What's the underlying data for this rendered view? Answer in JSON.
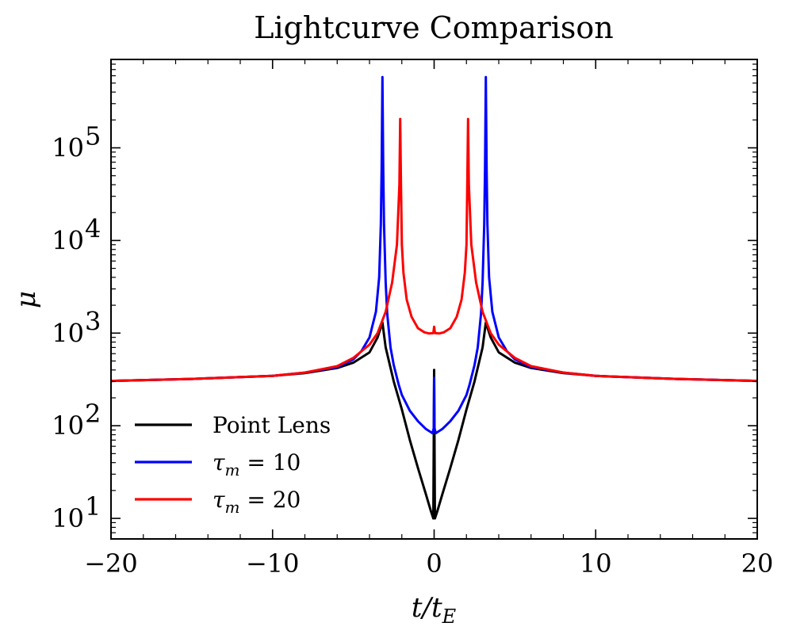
{
  "chart_data": {
    "type": "line",
    "title": "Lightcurve Comparison",
    "xlabel": "t/t_E",
    "ylabel": "μ",
    "yscale": "log",
    "xlim": [
      -20,
      20
    ],
    "ylim": [
      6,
      900000
    ],
    "grid": false,
    "legend_position": "lower-left",
    "x_ticks": [
      -20,
      -10,
      0,
      10,
      20
    ],
    "x_tick_labels": [
      "−20",
      "−10",
      "0",
      "10",
      "20"
    ],
    "y_ticks": [
      10,
      100,
      1000,
      10000,
      100000
    ],
    "y_tick_exponents": [
      "1",
      "2",
      "3",
      "4",
      "5"
    ],
    "series": [
      {
        "name": "Point Lens",
        "color": "#000000",
        "x": [
          -20,
          -15,
          -10,
          -8,
          -6,
          -5,
          -4,
          -3.5,
          -3.2,
          -3,
          -2.5,
          -2,
          -1.5,
          -1,
          -0.5,
          -0.2,
          -0.05,
          0,
          0.05,
          0.2,
          0.5,
          1,
          1.5,
          2,
          2.5,
          3,
          3.2,
          3.5,
          4,
          5,
          6,
          8,
          10,
          15,
          20
        ],
        "y": [
          305,
          320,
          345,
          370,
          420,
          480,
          620,
          900,
          1300,
          700,
          300,
          150,
          70,
          35,
          18,
          12,
          10,
          400,
          10,
          12,
          18,
          35,
          70,
          150,
          300,
          700,
          1300,
          900,
          620,
          480,
          420,
          370,
          345,
          320,
          305
        ]
      },
      {
        "name": "τ_m = 10",
        "color": "#0000ff",
        "x": [
          -20,
          -15,
          -10,
          -8,
          -6,
          -5,
          -4.5,
          -4,
          -3.6,
          -3.4,
          -3.3,
          -3.25,
          -3.2,
          -3.15,
          -3.1,
          -3.0,
          -2.9,
          -2.7,
          -2.5,
          -2.2,
          -2.0,
          -1.5,
          -1.0,
          -0.5,
          -0.1,
          -0.02,
          0,
          0.02,
          0.1,
          0.5,
          1.0,
          1.5,
          2.0,
          2.2,
          2.5,
          2.7,
          2.9,
          3.0,
          3.1,
          3.15,
          3.2,
          3.25,
          3.3,
          3.4,
          3.6,
          4,
          4.5,
          5,
          6,
          8,
          10,
          15,
          20
        ],
        "y": [
          305,
          320,
          345,
          375,
          430,
          520,
          640,
          900,
          1700,
          4000,
          15000,
          60000,
          580000,
          60000,
          15000,
          3500,
          1600,
          700,
          450,
          280,
          215,
          145,
          112,
          92,
          83,
          95,
          330,
          95,
          83,
          92,
          112,
          145,
          215,
          280,
          450,
          700,
          1600,
          3500,
          15000,
          60000,
          580000,
          60000,
          15000,
          4000,
          1700,
          900,
          640,
          520,
          430,
          375,
          345,
          320,
          305
        ]
      },
      {
        "name": "τ_m = 20",
        "color": "#ff0000",
        "x": [
          -20,
          -15,
          -10,
          -8,
          -6,
          -5,
          -4,
          -3.5,
          -3,
          -2.6,
          -2.3,
          -2.15,
          -2.1,
          -2.05,
          -2.0,
          -1.9,
          -1.7,
          -1.4,
          -1.0,
          -0.6,
          -0.3,
          -0.05,
          0,
          0.05,
          0.3,
          0.6,
          1.0,
          1.4,
          1.7,
          1.9,
          2.0,
          2.05,
          2.1,
          2.15,
          2.3,
          2.6,
          3,
          3.5,
          4,
          5,
          6,
          8,
          10,
          15,
          20
        ],
        "y": [
          305,
          320,
          345,
          375,
          440,
          540,
          750,
          1000,
          1700,
          3500,
          9000,
          40000,
          205000,
          40000,
          9000,
          4500,
          2300,
          1500,
          1130,
          1020,
          990,
          1000,
          1170,
          1000,
          990,
          1020,
          1130,
          1500,
          2300,
          4500,
          9000,
          40000,
          205000,
          40000,
          9000,
          3500,
          1700,
          1000,
          750,
          540,
          440,
          375,
          345,
          320,
          305
        ]
      }
    ]
  },
  "legend": {
    "items": [
      {
        "label": "Point Lens",
        "color": "#000000",
        "math": false
      },
      {
        "label": "τ",
        "sub": "m",
        "rest": " = 10",
        "color": "#0000ff",
        "math": true
      },
      {
        "label": "τ",
        "sub": "m",
        "rest": " = 20",
        "color": "#ff0000",
        "math": true
      }
    ]
  }
}
